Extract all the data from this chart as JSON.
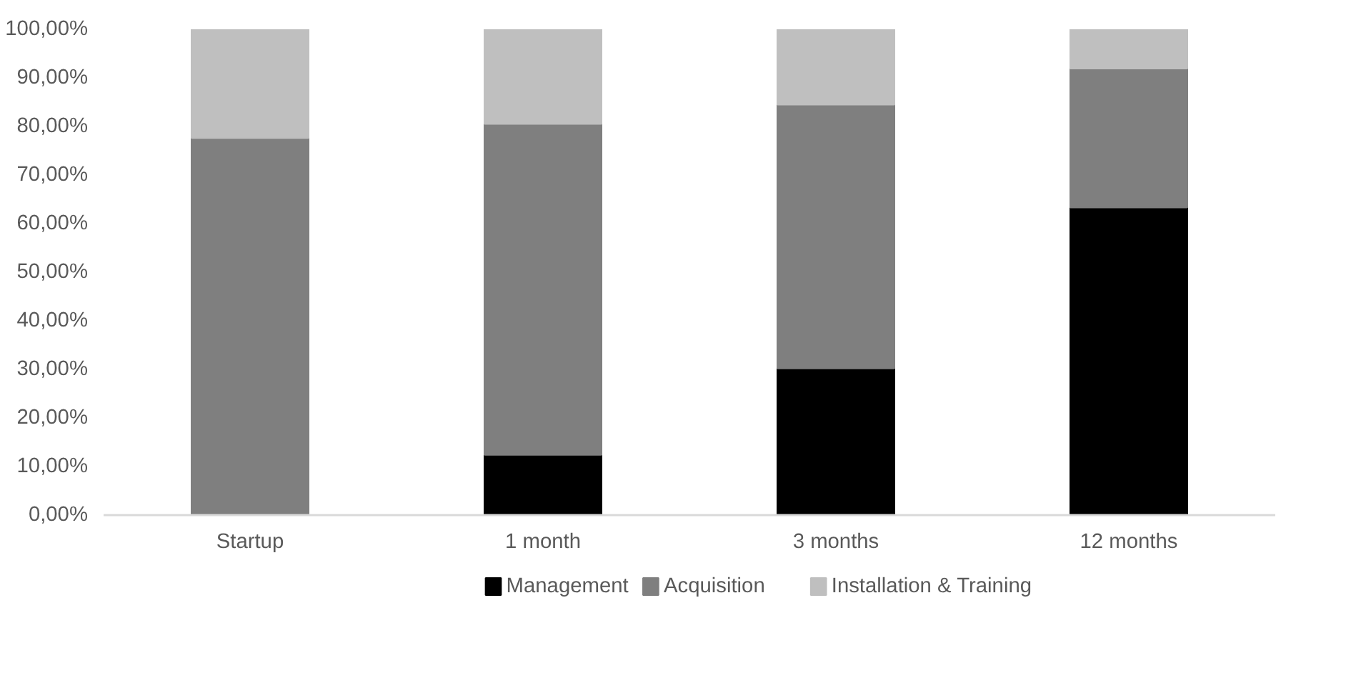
{
  "chart_data": {
    "type": "bar",
    "stacked": true,
    "categories": [
      "Startup",
      "1 month",
      "3 months",
      "12 months"
    ],
    "series": [
      {
        "name": "Management",
        "color": "#000000",
        "values": [
          0,
          12.4,
          30.2,
          63.3
        ]
      },
      {
        "name": "Acquisition",
        "color": "#7f7f7f",
        "values": [
          77.6,
          68.1,
          54.3,
          28.6
        ]
      },
      {
        "name": "Installation & Training",
        "color": "#bfbfbf",
        "values": [
          22.4,
          19.5,
          15.5,
          8.1
        ]
      }
    ],
    "ylim": [
      0,
      100
    ],
    "yticks": [
      {
        "value": 0,
        "label": "0,00%"
      },
      {
        "value": 10,
        "label": "10,00%"
      },
      {
        "value": 20,
        "label": "20,00%"
      },
      {
        "value": 30,
        "label": "30,00%"
      },
      {
        "value": 40,
        "label": "40,00%"
      },
      {
        "value": 50,
        "label": "50,00%"
      },
      {
        "value": 60,
        "label": "60,00%"
      },
      {
        "value": 70,
        "label": "70,00%"
      },
      {
        "value": 80,
        "label": "80,00%"
      },
      {
        "value": 90,
        "label": "90,00%"
      },
      {
        "value": 100,
        "label": "100,00%"
      }
    ],
    "grid": false,
    "legend": "bottom"
  }
}
